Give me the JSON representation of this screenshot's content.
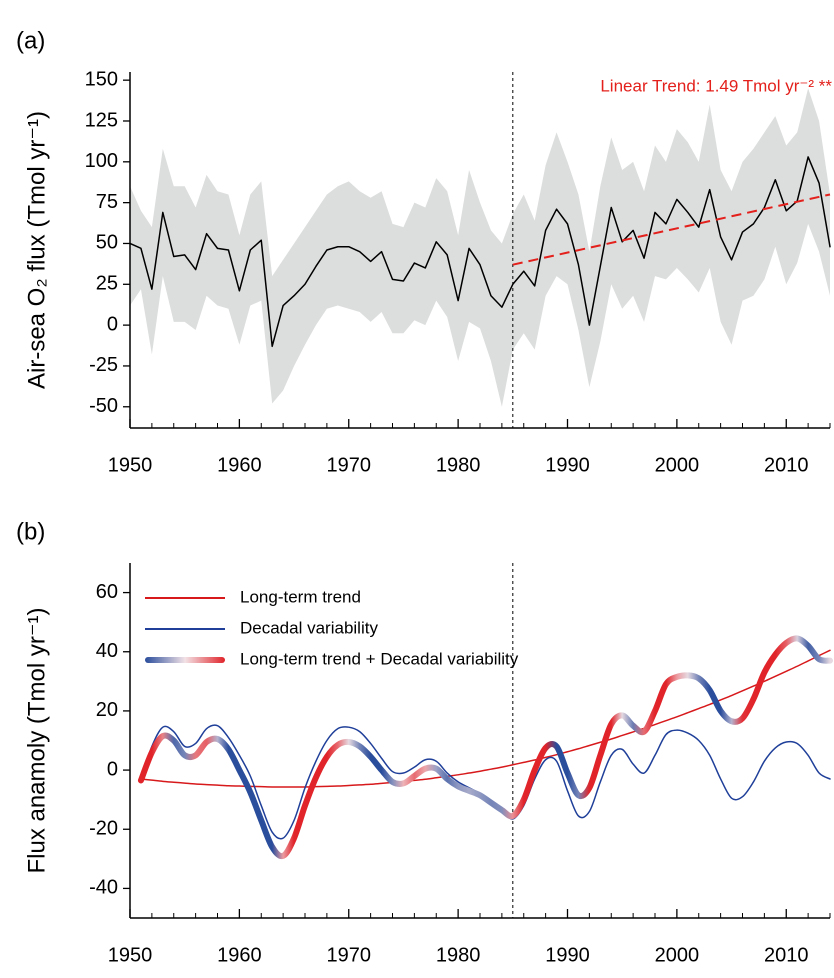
{
  "chart_data": [
    {
      "type": "line",
      "label": "(a)",
      "ylabel": "Air-sea O₂ flux (Tmol yr⁻¹)",
      "annotation": "Linear Trend: 1.49 Tmol yr⁻² **",
      "xlim": [
        1950,
        2014
      ],
      "xticks": [
        1950,
        1960,
        1970,
        1980,
        1990,
        2000,
        2010
      ],
      "xminor": 2,
      "ylim": [
        -63,
        155
      ],
      "yticks": [
        -50,
        -25,
        0,
        25,
        50,
        75,
        100,
        125,
        150
      ],
      "vline": 1985,
      "x": [
        1950,
        1951,
        1952,
        1953,
        1954,
        1955,
        1956,
        1957,
        1958,
        1959,
        1960,
        1961,
        1962,
        1963,
        1964,
        1965,
        1966,
        1967,
        1968,
        1969,
        1970,
        1971,
        1972,
        1973,
        1974,
        1975,
        1976,
        1977,
        1978,
        1979,
        1980,
        1981,
        1982,
        1983,
        1984,
        1985,
        1986,
        1987,
        1988,
        1989,
        1990,
        1991,
        1992,
        1993,
        1994,
        1995,
        1996,
        1997,
        1998,
        1999,
        2000,
        2001,
        2002,
        2003,
        2004,
        2005,
        2006,
        2007,
        2008,
        2009,
        2010,
        2011,
        2012,
        2013,
        2014
      ],
      "band": {
        "color": "#dcdddd",
        "upper": [
          85,
          70,
          60,
          108,
          85,
          85,
          72,
          92,
          82,
          80,
          55,
          80,
          88,
          30,
          40,
          50,
          60,
          70,
          80,
          85,
          88,
          82,
          78,
          82,
          62,
          60,
          75,
          72,
          90,
          82,
          55,
          95,
          75,
          58,
          50,
          68,
          80,
          64,
          98,
          118,
          100,
          80,
          45,
          85,
          115,
          95,
          100,
          82,
          110,
          100,
          120,
          112,
          100,
          135,
          95,
          82,
          100,
          108,
          118,
          128,
          110,
          118,
          145,
          125,
          80
        ],
        "lower": [
          12,
          22,
          -18,
          30,
          2,
          2,
          -3,
          18,
          12,
          10,
          -12,
          12,
          15,
          -48,
          -40,
          -25,
          -12,
          0,
          10,
          12,
          10,
          8,
          2,
          8,
          -5,
          -5,
          3,
          0,
          15,
          5,
          -22,
          2,
          -2,
          -22,
          -50,
          -15,
          -5,
          -15,
          18,
          30,
          25,
          -3,
          -38,
          -10,
          25,
          10,
          18,
          2,
          30,
          28,
          35,
          28,
          20,
          35,
          2,
          -12,
          15,
          18,
          28,
          48,
          25,
          38,
          62,
          45,
          18
        ]
      },
      "series": [
        {
          "color": "#000000",
          "values": [
            50,
            47,
            22,
            69,
            42,
            43,
            34,
            56,
            47,
            46,
            21,
            46,
            52,
            -13,
            12,
            18,
            25,
            36,
            46,
            48,
            48,
            45,
            39,
            45,
            28,
            27,
            38,
            35,
            51,
            43,
            15,
            47,
            37,
            18,
            11,
            25,
            33,
            24,
            58,
            71,
            62,
            37,
            0,
            36,
            72,
            51,
            58,
            41,
            69,
            62,
            77,
            69,
            60,
            83,
            54,
            40,
            57,
            62,
            72,
            89,
            70,
            76,
            103,
            87,
            48
          ]
        }
      ],
      "trend": {
        "color": "#e3201b",
        "x": [
          1985,
          2014
        ],
        "values": [
          37,
          80
        ]
      }
    },
    {
      "type": "line",
      "label": "(b)",
      "ylabel": "Flux anamoly (Tmol yr⁻¹)",
      "smooth": true,
      "legend": "upper left",
      "xlim": [
        1950,
        2014
      ],
      "xticks": [
        1950,
        1960,
        1970,
        1980,
        1990,
        2000,
        2010
      ],
      "xminor": 2,
      "ylim": [
        -50,
        70
      ],
      "yticks": [
        -40,
        -20,
        0,
        20,
        40,
        60
      ],
      "vline": 1985,
      "x": [
        1951,
        1952,
        1953,
        1954,
        1955,
        1956,
        1957,
        1958,
        1959,
        1960,
        1961,
        1962,
        1963,
        1964,
        1965,
        1966,
        1967,
        1968,
        1969,
        1970,
        1971,
        1972,
        1973,
        1974,
        1975,
        1976,
        1977,
        1978,
        1979,
        1980,
        1981,
        1982,
        1983,
        1984,
        1985,
        1986,
        1987,
        1988,
        1989,
        1990,
        1991,
        1992,
        1993,
        1994,
        1995,
        1996,
        1997,
        1998,
        1999,
        2000,
        2001,
        2002,
        2003,
        2004,
        2005,
        2006,
        2007,
        2008,
        2009,
        2010,
        2011,
        2012,
        2013,
        2014
      ],
      "series": [
        {
          "name": "Long-term trend",
          "color": "#d7191c",
          "values": [
            -3.0,
            -3.4,
            -3.8,
            -4.1,
            -4.4,
            -4.7,
            -4.9,
            -5.1,
            -5.3,
            -5.4,
            -5.5,
            -5.6,
            -5.7,
            -5.7,
            -5.7,
            -5.7,
            -5.6,
            -5.5,
            -5.4,
            -5.2,
            -5.0,
            -4.8,
            -4.5,
            -4.2,
            -3.9,
            -3.5,
            -3.1,
            -2.6,
            -2.1,
            -1.6,
            -1.0,
            -0.4,
            0.3,
            1.0,
            1.8,
            2.6,
            3.4,
            4.3,
            5.2,
            6.2,
            7.2,
            8.3,
            9.4,
            10.5,
            11.7,
            12.9,
            14.1,
            15.4,
            16.7,
            18.0,
            19.4,
            20.8,
            22.2,
            23.7,
            25.2,
            26.8,
            28.4,
            30.0,
            31.7,
            33.4,
            35.1,
            36.9,
            38.7,
            40.5
          ]
        },
        {
          "name": "Decadal variability",
          "color": "#1f3f99",
          "values": [
            -3,
            8,
            14.5,
            13,
            8,
            9,
            14,
            15,
            11,
            5,
            -2,
            -12,
            -21,
            -23,
            -17,
            -6,
            3,
            10,
            14,
            14.5,
            13,
            9,
            4,
            -0.5,
            -1,
            1,
            3.5,
            3,
            -1,
            -4,
            -6,
            -8,
            -11,
            -14,
            -16.5,
            -12,
            -3,
            3.5,
            3,
            -7,
            -15.5,
            -14,
            -4,
            5,
            7,
            2,
            -1,
            5,
            12,
            13.5,
            12.5,
            10,
            5,
            -3,
            -9.5,
            -9,
            -4,
            3,
            7.5,
            9.5,
            9,
            5,
            -1,
            -3
          ]
        },
        {
          "name": "Long-term trend + Decadal variability",
          "colors": [
            "#2a4d9c",
            "#e0242a"
          ],
          "values": [
            -3.5,
            6,
            11.5,
            10,
            5,
            5,
            9.5,
            10.5,
            7,
            0,
            -7.5,
            -17,
            -26,
            -29,
            -23,
            -12,
            -2.5,
            4.5,
            8.5,
            9.5,
            8,
            4.5,
            0,
            -4,
            -4.5,
            -2,
            0.5,
            0.5,
            -3,
            -5.5,
            -7,
            -8.5,
            -11,
            -13.5,
            -15.5,
            -10,
            0,
            7.5,
            8,
            -1,
            -8.5,
            -6,
            5,
            15.5,
            18.5,
            15,
            13,
            20,
            29,
            31.5,
            32,
            31,
            27,
            20,
            16.5,
            17.5,
            24,
            33,
            39,
            43,
            44.5,
            42,
            37.5,
            37
          ]
        }
      ]
    }
  ]
}
